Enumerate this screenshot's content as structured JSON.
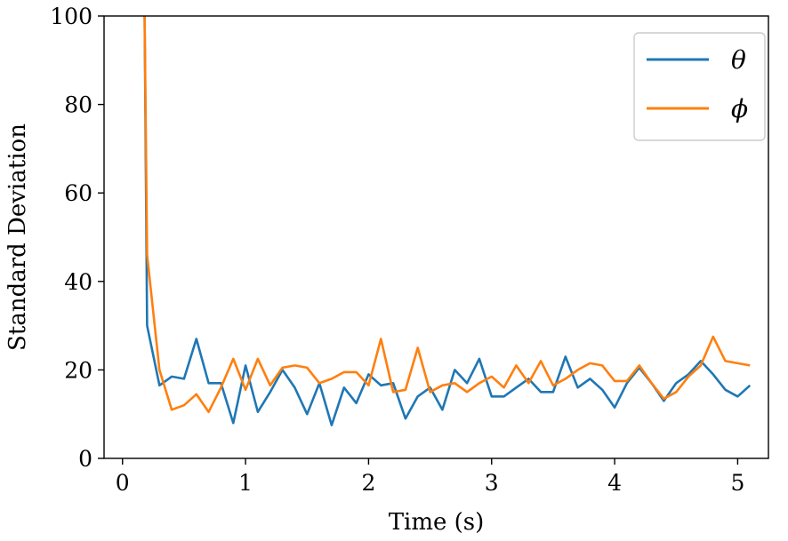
{
  "chart_data": {
    "type": "line",
    "title": "",
    "xlabel": "Time (s)",
    "ylabel": "Standard Deviation",
    "xlim": [
      -0.15,
      5.25
    ],
    "ylim": [
      0,
      100
    ],
    "xticks": [
      0,
      1,
      2,
      3,
      4,
      5
    ],
    "yticks": [
      0,
      20,
      40,
      60,
      80,
      100
    ],
    "xtick_labels": [
      "0",
      "1",
      "2",
      "3",
      "4",
      "5"
    ],
    "ytick_labels": [
      "0",
      "20",
      "40",
      "60",
      "80",
      "100"
    ],
    "grid": false,
    "legend_position": "top-right",
    "x": [
      0.2,
      0.3,
      0.4,
      0.5,
      0.6,
      0.7,
      0.8,
      0.9,
      1.0,
      1.1,
      1.2,
      1.3,
      1.4,
      1.5,
      1.6,
      1.7,
      1.8,
      1.9,
      2.0,
      2.1,
      2.2,
      2.3,
      2.4,
      2.5,
      2.6,
      2.7,
      2.8,
      2.9,
      3.0,
      3.1,
      3.2,
      3.3,
      3.4,
      3.5,
      3.6,
      3.7,
      3.8,
      3.9,
      4.0,
      4.1,
      4.2,
      4.3,
      4.4,
      4.5,
      4.6,
      4.7,
      4.8,
      4.9,
      5.0,
      5.1
    ],
    "series": [
      {
        "name": "θ",
        "color": "#1f77b4",
        "start": [
          0.18,
          100
        ],
        "values": [
          30,
          16.5,
          18.5,
          18,
          27,
          17,
          17,
          8,
          21,
          10.5,
          15,
          20,
          16,
          10,
          17,
          7.5,
          16,
          12.5,
          19,
          16.5,
          17,
          9,
          14,
          16,
          11,
          20,
          17,
          22.5,
          14,
          14,
          16,
          18,
          15,
          15,
          23,
          16,
          18,
          15.5,
          11.5,
          17,
          20.5,
          17,
          13,
          17,
          19,
          22,
          19,
          15.5,
          14,
          16.5
        ]
      },
      {
        "name": "ϕ",
        "color": "#ff7f0e",
        "start": [
          0.18,
          100
        ],
        "values": [
          46,
          20,
          11,
          12,
          14.5,
          10.5,
          16,
          22.5,
          15.5,
          22.5,
          16.5,
          20.5,
          21,
          20.5,
          17,
          18,
          19.5,
          19.5,
          16.5,
          27,
          15,
          15.5,
          25,
          15,
          16.5,
          17,
          15,
          17,
          18.5,
          16,
          21,
          17,
          22,
          16.5,
          18,
          20,
          21.5,
          21,
          17.5,
          17.5,
          21,
          17,
          13.5,
          15,
          18.5,
          21,
          27.5,
          22,
          21.5,
          21
        ]
      }
    ]
  }
}
